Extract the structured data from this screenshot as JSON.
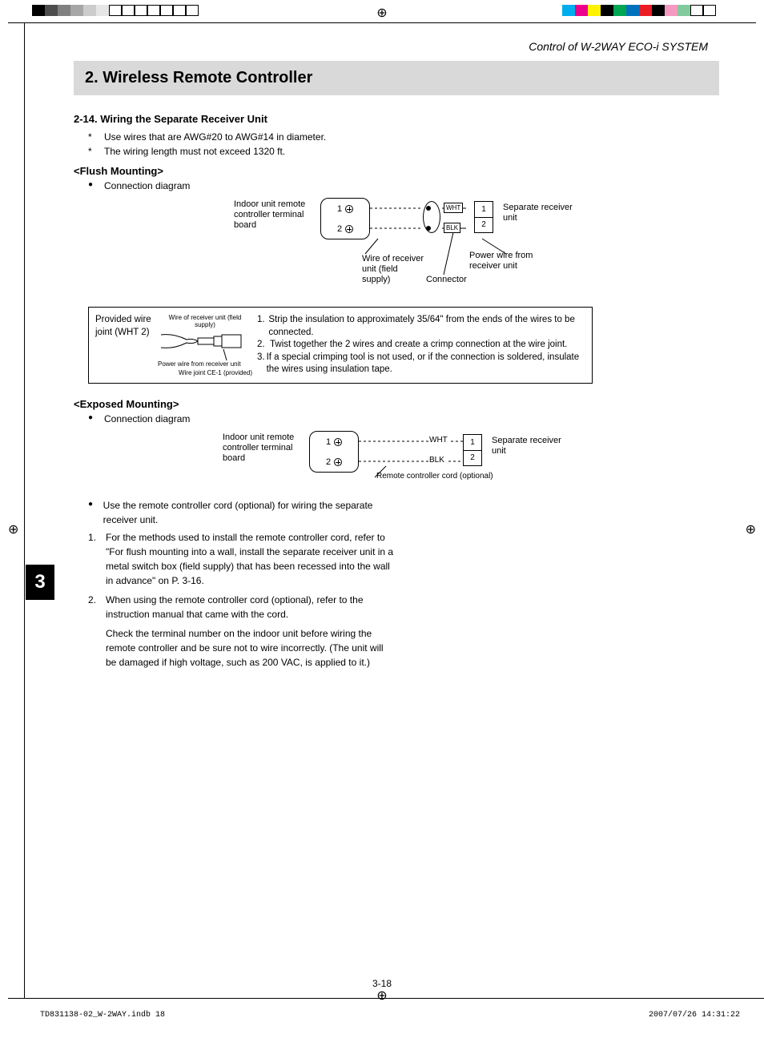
{
  "colorbar": {
    "left": [
      "#000000",
      "#4d4d4d",
      "#808080",
      "#a6a6a6",
      "#cccccc",
      "#e6e6e6",
      "#ffffff",
      "#ffffff",
      "#ffffff",
      "#ffffff",
      "#ffffff",
      "#ffffff",
      "#ffffff"
    ],
    "right": [
      "#00aeef",
      "#ec008c",
      "#fff200",
      "#000000",
      "#00a651",
      "#0072bc",
      "#ed1c24",
      "#000000",
      "#f49ac1",
      "#82ca9c",
      "#ffffff",
      "#ffffff"
    ],
    "left_borders": [
      false,
      false,
      false,
      false,
      false,
      false,
      true,
      true,
      true,
      true,
      true,
      true,
      true
    ],
    "right_borders": [
      false,
      false,
      false,
      false,
      false,
      false,
      false,
      false,
      false,
      false,
      true,
      true
    ]
  },
  "running_head": "Control of W-2WAY ECO-i SYSTEM",
  "title": "2. Wireless Remote Controller",
  "section": "2-14.  Wiring the Separate Receiver Unit",
  "stars": [
    "Use wires that are AWG#20 to AWG#14 in diameter.",
    "The wiring length must not exceed 1320 ft."
  ],
  "flush_head": "<Flush Mounting>",
  "conn_diag": "Connection diagram",
  "d1": {
    "indoor": "Indoor unit remote controller terminal board",
    "t1": "1",
    "t2": "2",
    "wht": "WHT",
    "blk": "BLK",
    "r1": "1",
    "r2": "2",
    "separate": "Separate receiver unit",
    "wire_recv": "Wire of receiver unit (field supply)",
    "connector": "Connector",
    "power_wire": "Power wire from receiver unit"
  },
  "joint": {
    "col1": "Provided wire joint (WHT 2)",
    "lbl_top": "Wire of receiver unit (field supply)",
    "lbl_mid": "Power wire from receiver unit",
    "lbl_bot": "Wire joint CE-1 (provided)",
    "steps": [
      "Strip the insulation to approximately 35/64\" from the ends of the wires to be connected.",
      "Twist together the 2 wires and create a crimp connection at the wire joint.",
      "If a special crimping tool is not used, or if the connection is soldered, insulate the wires using insulation tape."
    ]
  },
  "exposed_head": "<Exposed Mounting>",
  "d2": {
    "indoor": "Indoor unit remote controller terminal board",
    "t1": "1",
    "t2": "2",
    "wht": "WHT",
    "blk": "BLK",
    "r1": "1",
    "r2": "2",
    "separate": "Separate receiver unit",
    "cord": "Remote controller cord (optional)"
  },
  "use_cord": "Use the remote controller cord (optional) for wiring the separate receiver unit.",
  "numbered": [
    "For the methods used to install the remote controller cord, refer to \"For flush mounting into a wall, install the separate receiver unit in a metal switch box (field supply) that has been recessed into the wall in advance\" on P. 3-16.",
    "When using the remote controller cord (optional), refer to the instruction manual that came with the cord."
  ],
  "check_para": "Check the terminal number on the indoor unit before wiring the remote controller and be sure not to wire incorrectly. (The unit will be damaged if high voltage, such as 200 VAC, is applied to it.)",
  "chapter": "3",
  "page_num": "3-18",
  "footer_left": "TD831138-02_W-2WAY.indb   18",
  "footer_right": "2007/07/26   14:31:22"
}
